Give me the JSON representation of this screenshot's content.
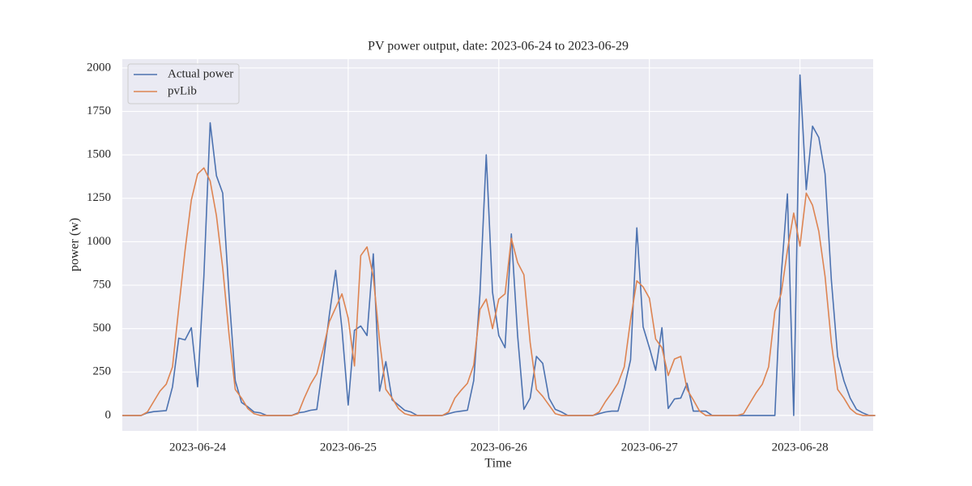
{
  "chart_data": {
    "type": "line",
    "title": "PV power output, date: 2023-06-24 to 2023-06-29",
    "xlabel": "Time",
    "ylabel": "power (w)",
    "x": [
      "2023-06-23 12:00",
      "2023-06-23 13:00",
      "2023-06-23 14:00",
      "2023-06-23 15:00",
      "2023-06-23 16:00",
      "2023-06-23 17:00",
      "2023-06-23 18:00",
      "2023-06-23 19:00",
      "2023-06-23 20:00",
      "2023-06-23 21:00",
      "2023-06-23 22:00",
      "2023-06-23 23:00",
      "2023-06-24 00:00",
      "2023-06-24 01:00",
      "2023-06-24 02:00",
      "2023-06-24 03:00",
      "2023-06-24 04:00",
      "2023-06-24 05:00",
      "2023-06-24 06:00",
      "2023-06-24 07:00",
      "2023-06-24 08:00",
      "2023-06-24 09:00",
      "2023-06-24 10:00",
      "2023-06-24 11:00",
      "2023-06-24 12:00",
      "2023-06-24 13:00",
      "2023-06-24 14:00",
      "2023-06-24 15:00",
      "2023-06-24 16:00",
      "2023-06-24 17:00",
      "2023-06-24 18:00",
      "2023-06-24 19:00",
      "2023-06-24 20:00",
      "2023-06-24 21:00",
      "2023-06-24 22:00",
      "2023-06-24 23:00",
      "2023-06-25 00:00",
      "2023-06-25 01:00",
      "2023-06-25 02:00",
      "2023-06-25 03:00",
      "2023-06-25 04:00",
      "2023-06-25 05:00",
      "2023-06-25 06:00",
      "2023-06-25 07:00",
      "2023-06-25 08:00",
      "2023-06-25 09:00",
      "2023-06-25 10:00",
      "2023-06-25 11:00",
      "2023-06-25 12:00",
      "2023-06-25 13:00",
      "2023-06-25 14:00",
      "2023-06-25 15:00",
      "2023-06-25 16:00",
      "2023-06-25 17:00",
      "2023-06-25 18:00",
      "2023-06-25 19:00",
      "2023-06-25 20:00",
      "2023-06-25 21:00",
      "2023-06-25 22:00",
      "2023-06-25 23:00",
      "2023-06-26 00:00",
      "2023-06-26 01:00",
      "2023-06-26 02:00",
      "2023-06-26 03:00",
      "2023-06-26 04:00",
      "2023-06-26 05:00",
      "2023-06-26 06:00",
      "2023-06-26 07:00",
      "2023-06-26 08:00",
      "2023-06-26 09:00",
      "2023-06-26 10:00",
      "2023-06-26 11:00",
      "2023-06-26 12:00",
      "2023-06-26 13:00",
      "2023-06-26 14:00",
      "2023-06-26 15:00",
      "2023-06-26 16:00",
      "2023-06-26 17:00",
      "2023-06-26 18:00",
      "2023-06-26 19:00",
      "2023-06-26 20:00",
      "2023-06-26 21:00",
      "2023-06-26 22:00",
      "2023-06-26 23:00",
      "2023-06-27 00:00",
      "2023-06-27 01:00",
      "2023-06-27 02:00",
      "2023-06-27 03:00",
      "2023-06-27 04:00",
      "2023-06-27 05:00",
      "2023-06-27 06:00",
      "2023-06-27 07:00",
      "2023-06-27 08:00",
      "2023-06-27 09:00",
      "2023-06-27 10:00",
      "2023-06-27 11:00",
      "2023-06-27 12:00",
      "2023-06-27 13:00",
      "2023-06-27 14:00",
      "2023-06-27 15:00",
      "2023-06-27 16:00",
      "2023-06-27 17:00",
      "2023-06-27 18:00",
      "2023-06-27 19:00",
      "2023-06-27 20:00",
      "2023-06-27 21:00",
      "2023-06-27 22:00",
      "2023-06-27 23:00",
      "2023-06-28 00:00",
      "2023-06-28 01:00",
      "2023-06-28 02:00",
      "2023-06-28 03:00",
      "2023-06-28 04:00",
      "2023-06-28 05:00",
      "2023-06-28 06:00",
      "2023-06-28 07:00",
      "2023-06-28 08:00",
      "2023-06-28 09:00",
      "2023-06-28 10:00",
      "2023-06-28 11:00",
      "2023-06-28 12:00"
    ],
    "series": [
      {
        "name": "Actual power",
        "color": "#4c72b0",
        "values": [
          0,
          0,
          0,
          0,
          15,
          22,
          25,
          28,
          165,
          445,
          435,
          505,
          165,
          800,
          1685,
          1380,
          1280,
          700,
          200,
          75,
          50,
          20,
          15,
          0,
          0,
          0,
          0,
          0,
          15,
          20,
          30,
          35,
          300,
          580,
          835,
          500,
          60,
          490,
          515,
          460,
          930,
          140,
          310,
          90,
          60,
          30,
          20,
          0,
          0,
          0,
          0,
          0,
          10,
          20,
          25,
          30,
          200,
          700,
          1500,
          710,
          460,
          390,
          1045,
          460,
          35,
          100,
          340,
          300,
          100,
          35,
          20,
          0,
          0,
          0,
          0,
          0,
          10,
          20,
          25,
          25,
          160,
          320,
          1080,
          510,
          390,
          260,
          505,
          40,
          95,
          100,
          185,
          25,
          25,
          25,
          0,
          0,
          0,
          0,
          0,
          0,
          0,
          0,
          0,
          0,
          0,
          800,
          1275,
          0,
          1960,
          1300,
          1665,
          1600,
          1390,
          780,
          340,
          200,
          100,
          35,
          15,
          0,
          0
        ]
      },
      {
        "name": "pvLib",
        "color": "#dd8452",
        "values": [
          0,
          0,
          0,
          0,
          20,
          80,
          140,
          180,
          280,
          620,
          950,
          1240,
          1390,
          1425,
          1350,
          1150,
          850,
          470,
          150,
          100,
          40,
          10,
          0,
          0,
          0,
          0,
          0,
          0,
          10,
          100,
          180,
          240,
          380,
          540,
          620,
          700,
          560,
          285,
          920,
          970,
          800,
          430,
          150,
          100,
          40,
          10,
          0,
          0,
          0,
          0,
          0,
          0,
          20,
          100,
          145,
          185,
          290,
          610,
          670,
          500,
          670,
          700,
          1020,
          880,
          810,
          420,
          150,
          110,
          60,
          10,
          0,
          0,
          0,
          0,
          0,
          0,
          20,
          80,
          130,
          185,
          280,
          550,
          775,
          740,
          675,
          440,
          390,
          230,
          325,
          340,
          150,
          90,
          25,
          0,
          0,
          0,
          0,
          0,
          0,
          10,
          70,
          130,
          180,
          280,
          600,
          700,
          950,
          1165,
          975,
          1280,
          1210,
          1060,
          800,
          420,
          150,
          100,
          40,
          10,
          0,
          0,
          0
        ]
      }
    ],
    "xlim": [
      "2023-06-23 12:00",
      "2023-06-28 11:40"
    ],
    "xticks": [
      "2023-06-24",
      "2023-06-25",
      "2023-06-26",
      "2023-06-27",
      "2023-06-28"
    ],
    "ylim": [
      -89,
      2051
    ],
    "yticks": [
      0,
      250,
      500,
      750,
      1000,
      1250,
      1500,
      1750,
      2000
    ],
    "grid": true,
    "legend": "upper left"
  }
}
